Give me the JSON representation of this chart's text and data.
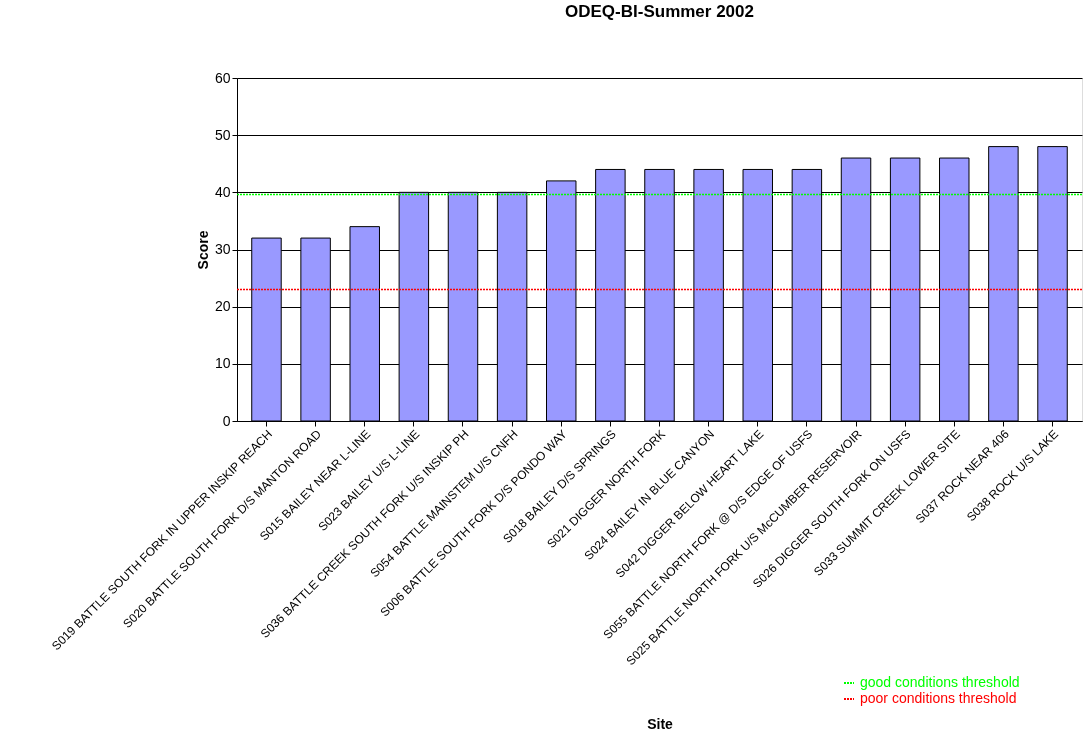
{
  "chart_data": {
    "type": "bar",
    "title": "ODEQ-BI-Summer 2002",
    "xlabel": "Site",
    "ylabel": "Score",
    "categories": [
      "S019 BATTLE SOUTH FORK IN UPPER INSKIP REACH",
      "S020 BATTLE SOUTH FORK D/S MANTON ROAD",
      "S015 BAILEY NEAR L-LINE",
      "S023 BAILEY U/S L-LINE",
      "S036 BATTLE CREEK SOUTH FORK U/S INSKIP PH",
      "S054 BATTLE MAINSTEM U/S CNFH",
      "S006 BATTLE SOUTH FORK D/S PONDO WAY",
      "S018 BAILEY D/S SPRINGS",
      "S021 DIGGER NORTH FORK",
      "S024 BAILEY IN BLUE CANYON",
      "S042 DIGGER BELOW HEART LAKE",
      "S055 BATTLE NORTH FORK @ D/S EDGE OF USFS",
      "S025 BATTLE NORTH FORK U/S McCUMBER RESERVOIR",
      "S026 DIGGER SOUTH FORK ON USFS",
      "S033 SUMMIT CREEK LOWER SITE",
      "S037 ROCK NEAR 406",
      "S038 ROCK U/S LAKE"
    ],
    "values": [
      32,
      32,
      34,
      40,
      40,
      40,
      42,
      44,
      44,
      44,
      44,
      44,
      46,
      46,
      46,
      48,
      48
    ],
    "color": "#9999ff",
    "ylim": [
      0,
      60
    ],
    "yticks": [
      0,
      10,
      20,
      30,
      40,
      50,
      60
    ],
    "grid": "y",
    "legend": "bottom right",
    "ref_lines": [
      {
        "axis": "y",
        "value": 39.6,
        "label": "good conditions threshold",
        "color": "#00ff00",
        "line_style": "dotted"
      },
      {
        "axis": "y",
        "value": 23,
        "label": "poor conditions threshold",
        "color": "#ff0000",
        "line_style": "dotted"
      }
    ]
  }
}
